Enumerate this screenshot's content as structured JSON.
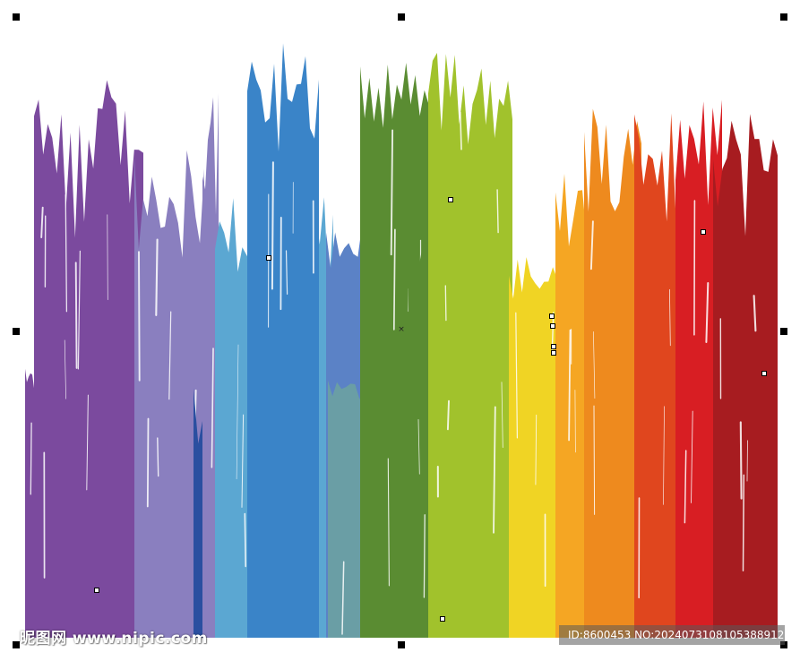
{
  "watermark": {
    "site_text": "昵图网 www.nipic.com",
    "id_text": "ID:8600453 NO:20240731081053889129"
  },
  "selection": {
    "center_marker": "×"
  },
  "colors": {
    "purple": "#7b4a9e",
    "lavender": "#8a7fbf",
    "dark-blue": "#2a4fa0",
    "blue": "#3a84c8",
    "light-blue": "#5ba7d2",
    "slate-blue": "#5b82c6",
    "teal": "#6a9ea5",
    "dark-green": "#5a8c32",
    "lime": "#a1c22c",
    "yellow": "#f0d424",
    "light-orange": "#f5a623",
    "orange": "#ee8a1e",
    "red-orange": "#e0461e",
    "red": "#d81e23",
    "dark-red": "#a71c20"
  }
}
